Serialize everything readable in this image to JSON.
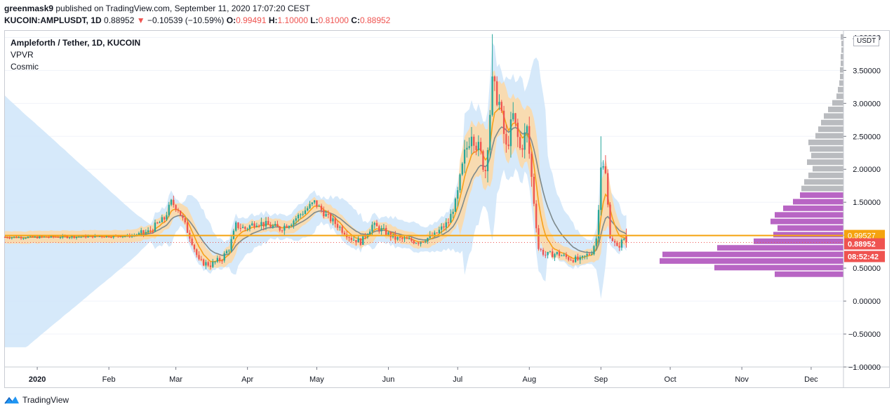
{
  "header": {
    "publisher_line": "greenmask9 published on TradingView.com, September 11, 2020 17:07:20 CEST",
    "user": "greenmask9",
    "published_text": " published on TradingView.com, September 11, 2020 17:07:20 CEST",
    "symbol": "KUCOIN:AMPLUSDT, 1D",
    "last": "0.88952",
    "arrow": "▼",
    "change": "−0.10539 (−10.59%)",
    "o_label": "O:",
    "o_val": "0.99491",
    "h_label": "H:",
    "h_val": "1.10000",
    "l_label": "L:",
    "l_val": "0.81000",
    "c_label": "C:",
    "c_val": "0.88952"
  },
  "legend": {
    "title": "Ampleforth / Tether, 1D, KUCOIN",
    "line2": "VPVR",
    "line3": "Cosmic"
  },
  "unit": "USDT",
  "footer": {
    "brand": "TradingView"
  },
  "colors": {
    "up": "#26a69a",
    "down": "#ef5350",
    "orange": "#f7a11a",
    "orange_band": "#fcd9a8",
    "blue_band": "#cfe5f9",
    "gray_ma": "#7e8a8c",
    "vp_up": "#b865c4",
    "vp_down": "#b9bbbf",
    "last_tag": "#ef5350",
    "hline": "#f5a30f"
  },
  "chart_data": {
    "type": "candlestick",
    "y_axis": {
      "ticks": [
        "4.00000",
        "3.50000",
        "3.00000",
        "2.50000",
        "2.00000",
        "1.50000",
        "1.00000",
        "0.50000",
        "0.00000",
        "−0.50000",
        "−1.00000"
      ],
      "tick_values": [
        4.0,
        3.5,
        3.0,
        2.5,
        2.0,
        1.5,
        1.0,
        0.5,
        0.0,
        -0.5,
        -1.0
      ],
      "range": [
        -1.0,
        4.1
      ]
    },
    "x_axis": {
      "labels": [
        "2020",
        "Feb",
        "Mar",
        "Apr",
        "May",
        "Jun",
        "Jul",
        "Aug",
        "Sep",
        "Oct",
        "Nov",
        "Dec"
      ],
      "label_days": [
        0,
        31,
        60,
        91,
        121,
        152,
        182,
        213,
        244,
        274,
        305,
        335
      ],
      "days_range": [
        -14,
        349
      ]
    },
    "price_labels": {
      "hline_value": "0.99527",
      "last_value": "0.88952",
      "countdown": "08:52:42"
    },
    "hline": 0.99527,
    "last": 0.88952,
    "price_anchors": [
      [
        -14,
        0.97
      ],
      [
        0,
        0.97
      ],
      [
        20,
        0.98
      ],
      [
        40,
        0.99
      ],
      [
        48,
        1.05
      ],
      [
        55,
        1.25
      ],
      [
        58,
        1.5
      ],
      [
        61,
        1.4
      ],
      [
        64,
        1.15
      ],
      [
        67,
        0.9
      ],
      [
        70,
        0.6
      ],
      [
        75,
        0.55
      ],
      [
        80,
        0.65
      ],
      [
        83,
        0.8
      ],
      [
        86,
        1.15
      ],
      [
        90,
        1.1
      ],
      [
        95,
        1.2
      ],
      [
        100,
        1.15
      ],
      [
        105,
        1.1
      ],
      [
        110,
        1.2
      ],
      [
        115,
        1.35
      ],
      [
        120,
        1.5
      ],
      [
        125,
        1.3
      ],
      [
        130,
        1.15
      ],
      [
        136,
        0.95
      ],
      [
        140,
        0.9
      ],
      [
        145,
        1.15
      ],
      [
        148,
        1.1
      ],
      [
        155,
        0.95
      ],
      [
        165,
        0.9
      ],
      [
        172,
        1.0
      ],
      [
        178,
        1.2
      ],
      [
        182,
        1.6
      ],
      [
        185,
        2.2
      ],
      [
        188,
        2.6
      ],
      [
        191,
        2.3
      ],
      [
        194,
        2.0
      ],
      [
        197,
        3.3
      ],
      [
        200,
        3.0
      ],
      [
        203,
        2.3
      ],
      [
        206,
        2.8
      ],
      [
        209,
        2.3
      ],
      [
        212,
        2.6
      ],
      [
        215,
        1.5
      ],
      [
        217,
        0.8
      ],
      [
        220,
        0.7
      ],
      [
        225,
        0.72
      ],
      [
        230,
        0.65
      ],
      [
        235,
        0.62
      ],
      [
        240,
        0.75
      ],
      [
        242,
        0.95
      ],
      [
        244,
        2.1
      ],
      [
        246,
        1.9
      ],
      [
        248,
        1.0
      ],
      [
        251,
        0.8
      ],
      [
        254,
        0.95
      ],
      [
        255,
        0.89
      ]
    ],
    "volume_profile_rows": [
      {
        "price": 4.0,
        "w": 4,
        "up": false
      },
      {
        "price": 3.9,
        "w": 3,
        "up": false
      },
      {
        "price": 3.8,
        "w": 3,
        "up": false
      },
      {
        "price": 3.7,
        "w": 4,
        "up": false
      },
      {
        "price": 3.6,
        "w": 4,
        "up": false
      },
      {
        "price": 3.5,
        "w": 5,
        "up": false
      },
      {
        "price": 3.4,
        "w": 5,
        "up": false
      },
      {
        "price": 3.3,
        "w": 6,
        "up": false
      },
      {
        "price": 3.2,
        "w": 8,
        "up": false
      },
      {
        "price": 3.1,
        "w": 10,
        "up": false
      },
      {
        "price": 3.0,
        "w": 16,
        "up": false
      },
      {
        "price": 2.9,
        "w": 22,
        "up": false
      },
      {
        "price": 2.8,
        "w": 28,
        "up": false
      },
      {
        "price": 2.7,
        "w": 32,
        "up": false
      },
      {
        "price": 2.6,
        "w": 36,
        "up": false
      },
      {
        "price": 2.5,
        "w": 40,
        "up": false
      },
      {
        "price": 2.4,
        "w": 50,
        "up": false
      },
      {
        "price": 2.3,
        "w": 48,
        "up": false
      },
      {
        "price": 2.2,
        "w": 46,
        "up": false
      },
      {
        "price": 2.1,
        "w": 52,
        "up": false
      },
      {
        "price": 2.0,
        "w": 44,
        "up": false
      },
      {
        "price": 1.9,
        "w": 50,
        "up": false
      },
      {
        "price": 1.8,
        "w": 56,
        "up": false
      },
      {
        "price": 1.7,
        "w": 60,
        "up": false
      },
      {
        "price": 1.6,
        "w": 62,
        "up": true
      },
      {
        "price": 1.5,
        "w": 72,
        "up": true
      },
      {
        "price": 1.4,
        "w": 86,
        "up": true
      },
      {
        "price": 1.3,
        "w": 98,
        "up": true
      },
      {
        "price": 1.2,
        "w": 104,
        "up": true
      },
      {
        "price": 1.1,
        "w": 94,
        "up": true
      },
      {
        "price": 1.0,
        "w": 100,
        "up": true
      },
      {
        "price": 0.9,
        "w": 128,
        "up": true
      },
      {
        "price": 0.8,
        "w": 180,
        "up": true
      },
      {
        "price": 0.7,
        "w": 258,
        "up": true
      },
      {
        "price": 0.6,
        "w": 262,
        "up": true
      },
      {
        "price": 0.5,
        "w": 184,
        "up": true
      },
      {
        "price": 0.4,
        "w": 98,
        "up": true
      }
    ]
  }
}
